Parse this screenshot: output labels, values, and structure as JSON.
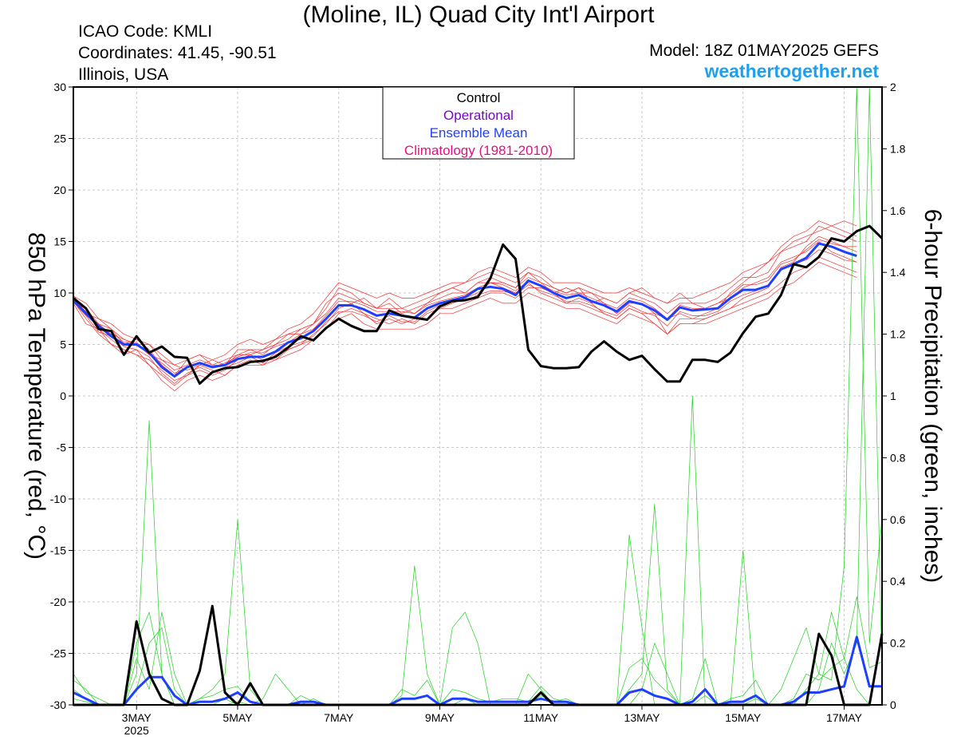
{
  "header": {
    "title": "(Moline, IL) Quad City Int'l Airport",
    "icao": "ICAO Code: KMLI",
    "coordinates": "Coordinates: 41.45, -90.51",
    "location": "Illinois, USA",
    "model": "Model: 18Z 01MAY2025 GEFS",
    "website": "weathertogether.net"
  },
  "colors": {
    "control": "#000000",
    "operational": "#8000d0",
    "ensemble_mean": "#1f3fff",
    "climatology": "#e0107f",
    "members_temp": "#f03030",
    "members_precip": "#20d020",
    "website": "#1ea0f0"
  },
  "chart_data": {
    "type": "line",
    "xlabel": "",
    "ylabel": "850 hPa Temperature (red, °C)",
    "y2label": "6-hour Precipitation (green, inches)",
    "ylim": [
      -30,
      30
    ],
    "y2lim": [
      0,
      2
    ],
    "xlim_days": [
      1.75,
      17.75
    ],
    "x_ticks": [
      {
        "day": 3,
        "label": "3MAY",
        "sublabel": "2025"
      },
      {
        "day": 5,
        "label": "5MAY"
      },
      {
        "day": 7,
        "label": "7MAY"
      },
      {
        "day": 9,
        "label": "9MAY"
      },
      {
        "day": 11,
        "label": "11MAY"
      },
      {
        "day": 13,
        "label": "13MAY"
      },
      {
        "day": 15,
        "label": "15MAY"
      },
      {
        "day": 17,
        "label": "17MAY"
      }
    ],
    "y_ticks": [
      30,
      25,
      20,
      15,
      10,
      5,
      0,
      -5,
      -10,
      -15,
      -20,
      -25,
      -30
    ],
    "y2_ticks": [
      "2",
      "1.8",
      "1.6",
      "1.4",
      "1.2",
      "1",
      "0.8",
      "0.6",
      "0.4",
      "0.2",
      "0"
    ],
    "legend": {
      "position": "top-center",
      "entries": [
        {
          "label": "Control",
          "key": "control"
        },
        {
          "label": "Operational",
          "key": "operational"
        },
        {
          "label": "Ensemble Mean",
          "key": "ensemble_mean"
        },
        {
          "label": "Climatology (1981-2010)",
          "key": "climatology"
        }
      ]
    },
    "grid": true,
    "x_start_day": 1.75,
    "x_step_days": 0.25,
    "control_temp": [
      9.5,
      8.5,
      6.5,
      6.3,
      4.0,
      5.8,
      4.2,
      4.8,
      3.8,
      3.7,
      1.2,
      2.3,
      2.7,
      2.8,
      3.3,
      3.4,
      3.8,
      4.7,
      5.8,
      5.4,
      6.6,
      7.5,
      6.8,
      6.3,
      6.3,
      8.3,
      7.8,
      7.6,
      7.4,
      8.7,
      9.2,
      9.3,
      9.6,
      11.4,
      14.7,
      13.3,
      4.5,
      2.9,
      2.7,
      2.7,
      2.8,
      4.3,
      5.3,
      4.3,
      3.5,
      3.9,
      2.6,
      1.4,
      1.4,
      3.5,
      3.5,
      3.3,
      4.2,
      6.1,
      7.7,
      8.0,
      9.8,
      12.8,
      12.5,
      13.5,
      15.3,
      15.0,
      16.0,
      16.5,
      15.3
    ],
    "ensemble_mean_temp": [
      9.3,
      8.0,
      6.8,
      5.8,
      5.0,
      5.0,
      4.2,
      2.8,
      1.9,
      2.8,
      3.2,
      2.8,
      3.0,
      3.6,
      3.8,
      3.8,
      4.3,
      5.2,
      5.6,
      6.3,
      7.5,
      8.8,
      8.8,
      8.4,
      7.8,
      8.0,
      7.8,
      7.6,
      8.5,
      9.0,
      9.3,
      9.6,
      10.4,
      10.6,
      10.4,
      9.8,
      11.2,
      10.7,
      10.0,
      9.5,
      9.8,
      9.2,
      8.8,
      8.2,
      9.2,
      8.9,
      8.3,
      7.4,
      8.6,
      8.3,
      8.4,
      8.5,
      9.5,
      10.3,
      10.3,
      10.7,
      12.3,
      12.8,
      13.4,
      14.8,
      14.5,
      14.0,
      13.6
    ],
    "control_precip": [
      0.0,
      0.0,
      0.0,
      0.0,
      0.0,
      0.27,
      0.1,
      0.02,
      0.0,
      0.0,
      0.11,
      0.32,
      0.04,
      0.0,
      0.07,
      0.0,
      0.0,
      0.0,
      0.0,
      0.0,
      0.0,
      0.0,
      0.0,
      0.0,
      0.0,
      0.0,
      0.0,
      0.0,
      0.0,
      0.0,
      0.0,
      0.0,
      0.0,
      0.0,
      0.0,
      0.0,
      0.0,
      0.04,
      0.0,
      0.0,
      0.0,
      0.0,
      0.0,
      0.0,
      0.0,
      0.0,
      0.0,
      0.0,
      0.0,
      0.0,
      0.0,
      0.0,
      0.0,
      0.0,
      0.0,
      0.0,
      0.0,
      0.0,
      0.0,
      0.23,
      0.16,
      0.0,
      0.0,
      0.0,
      0.23
    ],
    "ensemble_mean_precip": [
      0.04,
      0.02,
      0.0,
      0.0,
      0.0,
      0.05,
      0.09,
      0.09,
      0.03,
      0.0,
      0.01,
      0.01,
      0.02,
      0.04,
      0.01,
      0.0,
      0.0,
      0.0,
      0.01,
      0.01,
      0.0,
      0.0,
      0.0,
      0.0,
      0.0,
      0.0,
      0.02,
      0.02,
      0.03,
      0.0,
      0.02,
      0.02,
      0.01,
      0.01,
      0.01,
      0.01,
      0.01,
      0.02,
      0.01,
      0.01,
      0.0,
      0.0,
      0.0,
      0.0,
      0.04,
      0.05,
      0.03,
      0.02,
      0.0,
      0.01,
      0.05,
      0.0,
      0.01,
      0.01,
      0.03,
      0.0,
      0.0,
      0.01,
      0.04,
      0.04,
      0.05,
      0.06,
      0.22,
      0.06,
      0.06
    ],
    "member_temp_series": [
      [
        9.5,
        8.0,
        7.0,
        6.0,
        5.5,
        5.0,
        4.0,
        3.5,
        3.0,
        2.5,
        3.0,
        3.5,
        3.0,
        4.0,
        4.5,
        4.0,
        5.0,
        6.0,
        6.5,
        7.0,
        9.0,
        10.0,
        9.5,
        9.0,
        8.5,
        9.0,
        8.0,
        8.5,
        9.0,
        10.0,
        10.5,
        11.0,
        11.5,
        12.0,
        11.5,
        11.0,
        12.0,
        11.5,
        10.5,
        10.0,
        10.5,
        9.0,
        8.0,
        7.5,
        8.5,
        8.0,
        7.0,
        6.0,
        7.5,
        7.5,
        8.0,
        8.5,
        10.0,
        11.0,
        12.0,
        13.0,
        14.0,
        15.0,
        15.5,
        16.0,
        16.5,
        17.0,
        16.5
      ],
      [
        9.0,
        8.5,
        6.5,
        5.5,
        4.5,
        4.0,
        3.0,
        2.0,
        1.0,
        2.0,
        3.0,
        2.5,
        2.0,
        3.0,
        3.5,
        3.0,
        4.0,
        4.5,
        5.0,
        6.0,
        7.0,
        8.5,
        9.0,
        8.0,
        7.5,
        7.0,
        7.5,
        7.0,
        8.0,
        8.5,
        9.0,
        9.5,
        10.0,
        11.0,
        10.5,
        10.0,
        11.0,
        10.0,
        9.5,
        9.0,
        9.5,
        9.0,
        9.5,
        9.0,
        10.0,
        10.5,
        9.5,
        9.0,
        10.0,
        9.0,
        8.5,
        9.0,
        9.5,
        10.5,
        11.0,
        11.5,
        13.0,
        13.5,
        14.0,
        15.0,
        14.0,
        13.5,
        13.0
      ],
      [
        9.8,
        8.0,
        7.5,
        6.5,
        5.0,
        5.5,
        4.5,
        3.0,
        2.0,
        3.5,
        4.0,
        3.0,
        3.5,
        4.0,
        4.0,
        4.5,
        5.5,
        6.0,
        6.0,
        7.0,
        8.0,
        9.5,
        9.0,
        9.5,
        8.5,
        8.5,
        8.5,
        8.0,
        9.0,
        9.5,
        10.0,
        10.0,
        11.0,
        11.5,
        11.0,
        10.5,
        12.0,
        11.0,
        10.0,
        10.5,
        10.0,
        10.0,
        9.0,
        8.0,
        9.0,
        9.0,
        8.0,
        6.0,
        7.0,
        7.0,
        7.5,
        8.0,
        8.5,
        9.5,
        10.0,
        10.5,
        12.5,
        13.0,
        14.5,
        15.5,
        15.0,
        14.5,
        14.5
      ],
      [
        9.2,
        7.5,
        6.0,
        5.0,
        4.5,
        4.0,
        3.5,
        2.5,
        1.5,
        2.0,
        2.5,
        2.0,
        2.5,
        3.5,
        4.0,
        3.5,
        3.5,
        4.5,
        5.0,
        5.5,
        6.5,
        8.0,
        8.5,
        8.0,
        7.0,
        7.5,
        7.0,
        7.5,
        7.5,
        8.5,
        8.5,
        9.0,
        9.5,
        10.0,
        10.0,
        9.5,
        10.5,
        10.5,
        10.0,
        9.0,
        9.0,
        8.5,
        8.0,
        7.5,
        8.5,
        8.0,
        8.0,
        7.5,
        8.0,
        7.5,
        7.5,
        8.0,
        8.5,
        9.0,
        9.5,
        10.0,
        11.0,
        12.0,
        12.5,
        13.5,
        13.0,
        12.5,
        12.0
      ],
      [
        9.6,
        8.5,
        7.0,
        6.5,
        5.5,
        5.0,
        5.0,
        3.5,
        2.5,
        3.0,
        3.5,
        3.0,
        3.0,
        4.5,
        4.5,
        4.5,
        5.0,
        5.5,
        6.5,
        7.0,
        8.5,
        10.5,
        10.0,
        9.0,
        8.5,
        9.5,
        8.5,
        9.0,
        9.5,
        10.0,
        10.5,
        10.0,
        11.0,
        11.0,
        11.0,
        10.5,
        11.5,
        11.0,
        10.5,
        10.0,
        10.5,
        10.0,
        9.5,
        9.0,
        10.0,
        9.5,
        9.0,
        8.0,
        9.0,
        9.0,
        9.0,
        9.5,
        10.5,
        11.5,
        11.5,
        12.0,
        14.0,
        14.5,
        15.0,
        16.5,
        16.0,
        15.5,
        15.0
      ],
      [
        9.0,
        7.0,
        6.5,
        5.0,
        4.0,
        4.5,
        3.0,
        1.5,
        0.5,
        1.5,
        2.0,
        1.5,
        2.0,
        3.0,
        3.0,
        3.0,
        3.5,
        4.0,
        4.5,
        5.5,
        6.5,
        7.5,
        8.0,
        7.0,
        6.5,
        6.5,
        6.5,
        6.5,
        7.0,
        8.0,
        8.0,
        8.5,
        9.0,
        9.5,
        9.0,
        9.0,
        10.0,
        9.5,
        9.0,
        8.5,
        8.5,
        8.0,
        7.5,
        7.0,
        8.0,
        7.5,
        7.0,
        6.0,
        7.0,
        7.0,
        7.0,
        7.5,
        8.0,
        8.5,
        9.0,
        9.5,
        10.5,
        11.0,
        12.0,
        13.0,
        12.5,
        12.0,
        11.5
      ],
      [
        9.4,
        8.2,
        6.8,
        6.2,
        5.2,
        5.2,
        4.0,
        3.2,
        2.2,
        2.8,
        3.2,
        2.8,
        3.2,
        3.8,
        4.2,
        4.2,
        4.8,
        5.2,
        6.0,
        6.5,
        7.8,
        9.2,
        9.2,
        8.8,
        8.2,
        8.2,
        8.2,
        8.0,
        8.8,
        9.2,
        9.5,
        9.8,
        10.5,
        11.0,
        10.8,
        10.2,
        11.2,
        10.8,
        10.2,
        9.8,
        10.0,
        9.5,
        9.0,
        8.5,
        9.5,
        9.2,
        8.5,
        7.5,
        8.8,
        8.5,
        8.5,
        9.0,
        9.8,
        10.8,
        10.8,
        11.2,
        12.8,
        13.2,
        14.2,
        15.2,
        14.8,
        14.5,
        14.0
      ],
      [
        9.7,
        9.0,
        7.5,
        7.0,
        6.0,
        5.5,
        5.0,
        4.0,
        3.0,
        3.5,
        4.0,
        3.5,
        4.0,
        5.0,
        5.5,
        5.0,
        5.5,
        6.5,
        7.0,
        8.0,
        9.5,
        11.0,
        10.5,
        10.0,
        9.5,
        10.0,
        9.5,
        9.5,
        10.0,
        10.5,
        11.0,
        11.0,
        12.0,
        12.5,
        12.0,
        11.5,
        12.5,
        12.0,
        11.0,
        11.0,
        11.0,
        10.5,
        10.0,
        10.0,
        10.5,
        10.0,
        9.5,
        9.0,
        9.5,
        9.5,
        10.0,
        10.5,
        11.0,
        12.0,
        12.5,
        13.0,
        14.5,
        15.5,
        16.0,
        17.0,
        16.5,
        16.0,
        15.5
      ],
      [
        9.1,
        7.8,
        6.2,
        5.8,
        4.8,
        4.5,
        3.8,
        2.2,
        1.2,
        2.2,
        2.8,
        2.2,
        2.8,
        3.2,
        3.8,
        3.2,
        4.2,
        4.8,
        5.2,
        5.8,
        7.2,
        8.2,
        8.2,
        7.8,
        7.2,
        7.8,
        7.2,
        7.2,
        8.2,
        8.8,
        9.2,
        9.2,
        9.8,
        10.2,
        10.2,
        9.8,
        10.8,
        10.2,
        9.8,
        9.2,
        9.2,
        8.8,
        8.2,
        7.8,
        8.8,
        8.2,
        7.8,
        6.8,
        8.2,
        7.8,
        7.8,
        8.2,
        9.2,
        9.8,
        10.2,
        10.8,
        12.2,
        12.8,
        13.2,
        14.2,
        13.8,
        13.2,
        13.0
      ]
    ],
    "member_precip_series": [
      [
        0.1,
        0.04,
        0.02,
        0.0,
        0.0,
        0.2,
        0.3,
        0.1,
        0.0,
        0.0,
        0.02,
        0.03,
        0.05,
        0.06,
        0.01,
        0.0,
        0.0,
        0.0,
        0.03,
        0.01,
        0.0,
        0.0,
        0.0,
        0.0,
        0.0,
        0.0,
        0.05,
        0.03,
        0.08,
        0.0,
        0.05,
        0.04,
        0.02,
        0.01,
        0.02,
        0.02,
        0.01,
        0.06,
        0.02,
        0.01,
        0.0,
        0.0,
        0.0,
        0.0,
        0.12,
        0.15,
        0.08,
        0.04,
        0.0,
        0.02,
        0.15,
        0.0,
        0.02,
        0.03,
        0.08,
        0.0,
        0.0,
        0.02,
        0.1,
        0.08,
        0.12,
        0.15,
        0.35,
        0.12,
        0.14
      ],
      [
        0.05,
        0.02,
        0.0,
        0.0,
        0.0,
        0.1,
        0.92,
        0.1,
        0.0,
        0.0,
        0.02,
        0.05,
        0.1,
        0.6,
        0.05,
        0.0,
        0.0,
        0.0,
        0.0,
        0.02,
        0.0,
        0.0,
        0.0,
        0.0,
        0.0,
        0.0,
        0.03,
        0.45,
        0.1,
        0.0,
        0.0,
        0.02,
        0.0,
        0.0,
        0.0,
        0.0,
        0.0,
        0.03,
        0.01,
        0.02,
        0.0,
        0.0,
        0.0,
        0.0,
        0.05,
        0.1,
        0.65,
        0.05,
        0.0,
        0.0,
        0.03,
        0.0,
        0.0,
        0.0,
        0.02,
        0.0,
        0.0,
        0.0,
        0.05,
        0.1,
        0.08,
        0.45,
        2.0,
        0.2,
        0.6
      ],
      [
        0.02,
        0.01,
        0.0,
        0.0,
        0.0,
        0.05,
        0.2,
        0.25,
        0.05,
        0.0,
        0.0,
        0.0,
        0.0,
        0.01,
        0.0,
        0.0,
        0.0,
        0.0,
        0.0,
        0.0,
        0.0,
        0.0,
        0.0,
        0.0,
        0.0,
        0.0,
        0.0,
        0.0,
        0.0,
        0.0,
        0.25,
        0.3,
        0.2,
        0.0,
        0.0,
        0.0,
        0.0,
        0.0,
        0.0,
        0.0,
        0.0,
        0.0,
        0.0,
        0.0,
        0.55,
        0.25,
        0.0,
        0.0,
        0.0,
        1.0,
        0.0,
        0.0,
        0.0,
        0.5,
        0.0,
        0.0,
        0.0,
        0.0,
        0.0,
        0.05,
        0.2,
        0.1,
        0.2,
        2.0,
        0.1
      ],
      [
        0.08,
        0.05,
        0.0,
        0.0,
        0.0,
        0.15,
        0.05,
        0.3,
        0.1,
        0.0,
        0.0,
        0.0,
        0.02,
        0.0,
        0.0,
        0.02,
        0.1,
        0.05,
        0.0,
        0.0,
        0.0,
        0.0,
        0.0,
        0.0,
        0.0,
        0.0,
        0.0,
        0.0,
        0.0,
        0.0,
        0.0,
        0.0,
        0.0,
        0.0,
        0.0,
        0.0,
        0.1,
        0.05,
        0.0,
        0.0,
        0.0,
        0.0,
        0.0,
        0.0,
        0.0,
        0.05,
        0.2,
        0.1,
        0.0,
        0.0,
        0.0,
        0.0,
        0.0,
        0.0,
        0.0,
        0.0,
        0.05,
        0.15,
        0.25,
        0.1,
        0.3,
        0.15,
        0.05,
        0.0,
        0.25
      ]
    ]
  }
}
